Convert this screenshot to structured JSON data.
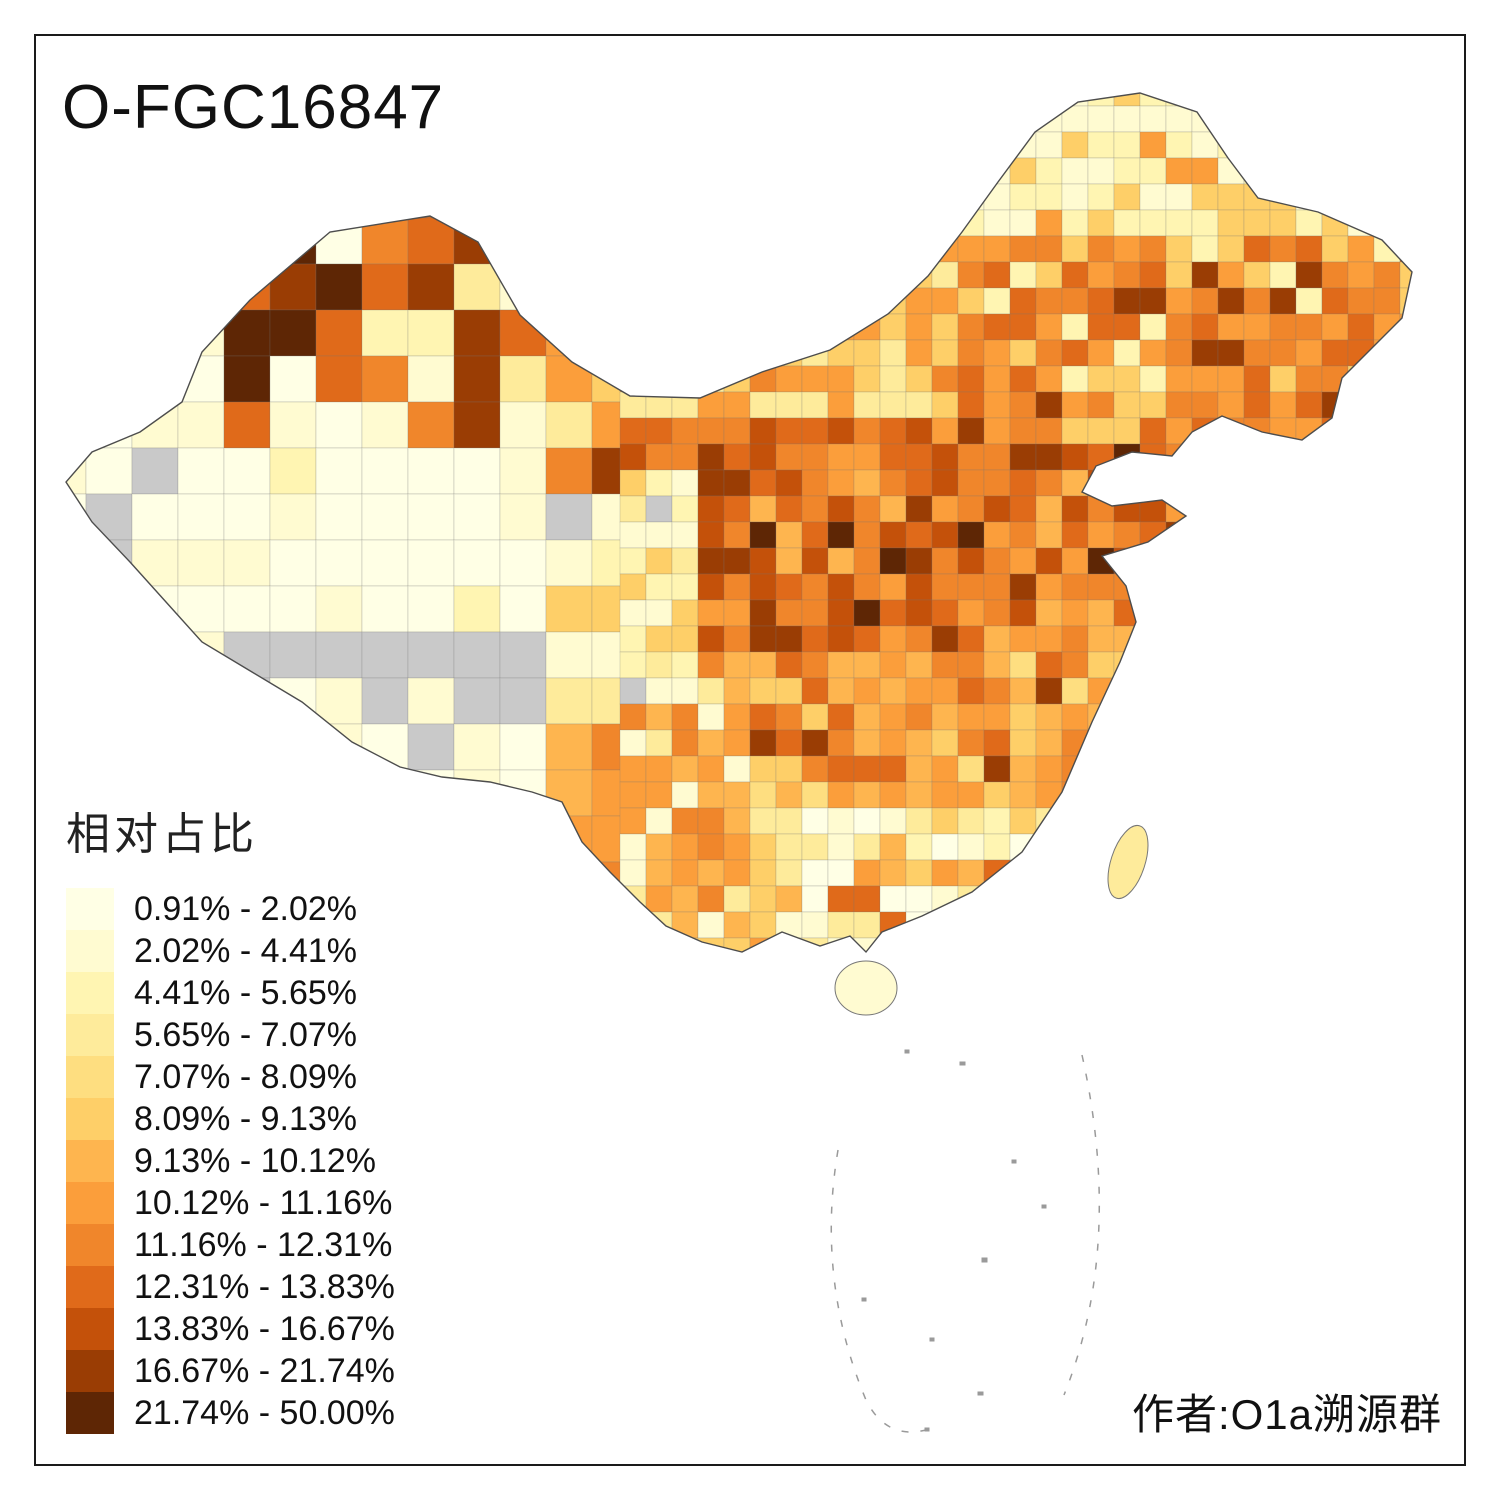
{
  "title": "O-FGC16847",
  "legend": {
    "title": "相对占比",
    "items": [
      {
        "range": "0.91% - 2.02%",
        "color": "#FFFFE5"
      },
      {
        "range": "2.02% - 4.41%",
        "color": "#FFFBD1"
      },
      {
        "range": "4.41% - 5.65%",
        "color": "#FFF5B2"
      },
      {
        "range": "5.65% - 7.07%",
        "color": "#FEEB9B"
      },
      {
        "range": "7.07% - 8.09%",
        "color": "#FEDE80"
      },
      {
        "range": "8.09% - 9.13%",
        "color": "#FECF68"
      },
      {
        "range": "9.13% - 10.12%",
        "color": "#FEB54F"
      },
      {
        "range": "10.12% - 11.16%",
        "color": "#FB9E3B"
      },
      {
        "range": "11.16% - 12.31%",
        "color": "#F0862B"
      },
      {
        "range": "12.31% - 13.83%",
        "color": "#E06A1A"
      },
      {
        "range": "13.83% - 16.67%",
        "color": "#C4510A"
      },
      {
        "range": "16.67% - 21.74%",
        "color": "#9A3D04"
      },
      {
        "range": "21.74% - 50.00%",
        "color": "#5E2605"
      }
    ]
  },
  "attribution": "作者:O1a溯源群",
  "map": {
    "name": "china-prefecture-choropleth",
    "no_data_color": "#C9C9C9",
    "outline_color": "#4D4D4D",
    "cell_border_color": "rgba(120,120,120,0.30)"
  }
}
